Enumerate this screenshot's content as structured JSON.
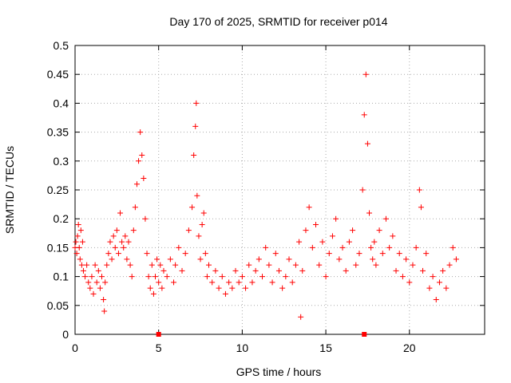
{
  "chart_data": {
    "type": "scatter",
    "title": "Day 170 of 2025, SRMTID for receiver p014",
    "xlabel": "GPS time / hours",
    "ylabel": "SRMTID / TECUs",
    "xlim": [
      0,
      24.5
    ],
    "ylim": [
      0,
      0.5
    ],
    "xticks": [
      0,
      5,
      10,
      15,
      20
    ],
    "yticks": [
      0,
      0.05,
      0.1,
      0.15,
      0.2,
      0.25,
      0.3,
      0.35,
      0.4,
      0.45,
      0.5
    ],
    "ytick_labels": [
      "0",
      "0.05",
      "0.1",
      "0.15",
      "0.2",
      "0.25",
      "0.3",
      "0.35",
      "0.4",
      "0.45",
      "0.5"
    ],
    "grid": true,
    "marker": "plus",
    "color": "#ff0000",
    "series": [
      {
        "name": "SRMTID",
        "points": [
          [
            0.0,
            0.15
          ],
          [
            0.05,
            0.16
          ],
          [
            0.1,
            0.14
          ],
          [
            0.15,
            0.17
          ],
          [
            0.2,
            0.19
          ],
          [
            0.25,
            0.15
          ],
          [
            0.3,
            0.13
          ],
          [
            0.35,
            0.18
          ],
          [
            0.4,
            0.12
          ],
          [
            0.45,
            0.16
          ],
          [
            0.5,
            0.11
          ],
          [
            0.6,
            0.1
          ],
          [
            0.7,
            0.12
          ],
          [
            0.8,
            0.09
          ],
          [
            0.9,
            0.08
          ],
          [
            1.0,
            0.1
          ],
          [
            1.1,
            0.07
          ],
          [
            1.2,
            0.12
          ],
          [
            1.3,
            0.09
          ],
          [
            1.4,
            0.11
          ],
          [
            1.5,
            0.08
          ],
          [
            1.6,
            0.1
          ],
          [
            1.7,
            0.06
          ],
          [
            1.75,
            0.04
          ],
          [
            1.8,
            0.09
          ],
          [
            1.9,
            0.12
          ],
          [
            2.0,
            0.14
          ],
          [
            2.1,
            0.16
          ],
          [
            2.2,
            0.13
          ],
          [
            2.3,
            0.17
          ],
          [
            2.4,
            0.15
          ],
          [
            2.5,
            0.18
          ],
          [
            2.6,
            0.14
          ],
          [
            2.7,
            0.21
          ],
          [
            2.8,
            0.16
          ],
          [
            2.9,
            0.15
          ],
          [
            3.0,
            0.17
          ],
          [
            3.1,
            0.13
          ],
          [
            3.2,
            0.16
          ],
          [
            3.3,
            0.12
          ],
          [
            3.4,
            0.1
          ],
          [
            3.5,
            0.18
          ],
          [
            3.6,
            0.22
          ],
          [
            3.7,
            0.26
          ],
          [
            3.8,
            0.3
          ],
          [
            3.9,
            0.35
          ],
          [
            4.0,
            0.31
          ],
          [
            4.1,
            0.27
          ],
          [
            4.2,
            0.2
          ],
          [
            4.3,
            0.14
          ],
          [
            4.4,
            0.1
          ],
          [
            4.5,
            0.08
          ],
          [
            4.6,
            0.12
          ],
          [
            4.7,
            0.07
          ],
          [
            4.8,
            0.1
          ],
          [
            4.9,
            0.13
          ],
          [
            5.0,
            0.09
          ],
          [
            5.1,
            0.12
          ],
          [
            5.2,
            0.08
          ],
          [
            5.3,
            0.11
          ],
          [
            5.5,
            0.1
          ],
          [
            5.7,
            0.13
          ],
          [
            5.9,
            0.09
          ],
          [
            6.0,
            0.12
          ],
          [
            6.2,
            0.15
          ],
          [
            6.4,
            0.11
          ],
          [
            6.6,
            0.14
          ],
          [
            6.8,
            0.18
          ],
          [
            7.0,
            0.22
          ],
          [
            7.1,
            0.31
          ],
          [
            7.2,
            0.36
          ],
          [
            7.25,
            0.4
          ],
          [
            7.3,
            0.24
          ],
          [
            7.4,
            0.17
          ],
          [
            7.5,
            0.13
          ],
          [
            7.6,
            0.19
          ],
          [
            7.7,
            0.21
          ],
          [
            7.8,
            0.14
          ],
          [
            7.9,
            0.1
          ],
          [
            8.0,
            0.12
          ],
          [
            8.2,
            0.09
          ],
          [
            8.4,
            0.11
          ],
          [
            8.6,
            0.08
          ],
          [
            8.8,
            0.1
          ],
          [
            9.0,
            0.07
          ],
          [
            9.2,
            0.09
          ],
          [
            9.4,
            0.08
          ],
          [
            9.6,
            0.11
          ],
          [
            9.8,
            0.09
          ],
          [
            10.0,
            0.1
          ],
          [
            10.2,
            0.08
          ],
          [
            10.4,
            0.12
          ],
          [
            10.6,
            0.09
          ],
          [
            10.8,
            0.11
          ],
          [
            11.0,
            0.13
          ],
          [
            11.2,
            0.1
          ],
          [
            11.4,
            0.15
          ],
          [
            11.6,
            0.12
          ],
          [
            11.8,
            0.09
          ],
          [
            12.0,
            0.14
          ],
          [
            12.2,
            0.11
          ],
          [
            12.4,
            0.08
          ],
          [
            12.6,
            0.1
          ],
          [
            12.8,
            0.13
          ],
          [
            13.0,
            0.09
          ],
          [
            13.2,
            0.12
          ],
          [
            13.4,
            0.16
          ],
          [
            13.5,
            0.03
          ],
          [
            13.6,
            0.11
          ],
          [
            13.8,
            0.18
          ],
          [
            14.0,
            0.22
          ],
          [
            14.2,
            0.15
          ],
          [
            14.4,
            0.19
          ],
          [
            14.6,
            0.12
          ],
          [
            14.8,
            0.16
          ],
          [
            15.0,
            0.1
          ],
          [
            15.2,
            0.14
          ],
          [
            15.4,
            0.17
          ],
          [
            15.6,
            0.2
          ],
          [
            15.8,
            0.13
          ],
          [
            16.0,
            0.15
          ],
          [
            16.2,
            0.11
          ],
          [
            16.4,
            0.16
          ],
          [
            16.6,
            0.18
          ],
          [
            16.8,
            0.12
          ],
          [
            17.0,
            0.14
          ],
          [
            17.2,
            0.25
          ],
          [
            17.3,
            0.38
          ],
          [
            17.4,
            0.45
          ],
          [
            17.5,
            0.33
          ],
          [
            17.6,
            0.21
          ],
          [
            17.7,
            0.15
          ],
          [
            17.8,
            0.13
          ],
          [
            17.9,
            0.16
          ],
          [
            18.0,
            0.12
          ],
          [
            18.2,
            0.18
          ],
          [
            18.4,
            0.14
          ],
          [
            18.6,
            0.2
          ],
          [
            18.8,
            0.15
          ],
          [
            19.0,
            0.17
          ],
          [
            19.2,
            0.11
          ],
          [
            19.4,
            0.14
          ],
          [
            19.6,
            0.1
          ],
          [
            19.8,
            0.13
          ],
          [
            20.0,
            0.09
          ],
          [
            20.2,
            0.12
          ],
          [
            20.4,
            0.15
          ],
          [
            20.6,
            0.25
          ],
          [
            20.7,
            0.22
          ],
          [
            20.8,
            0.11
          ],
          [
            21.0,
            0.14
          ],
          [
            21.2,
            0.08
          ],
          [
            21.4,
            0.1
          ],
          [
            21.6,
            0.06
          ],
          [
            21.8,
            0.09
          ],
          [
            22.0,
            0.11
          ],
          [
            22.2,
            0.08
          ],
          [
            22.4,
            0.12
          ],
          [
            22.6,
            0.15
          ],
          [
            22.8,
            0.13
          ]
        ]
      },
      {
        "name": "zero-markers",
        "points": [
          [
            5.0,
            0
          ],
          [
            17.3,
            0
          ]
        ]
      }
    ]
  }
}
